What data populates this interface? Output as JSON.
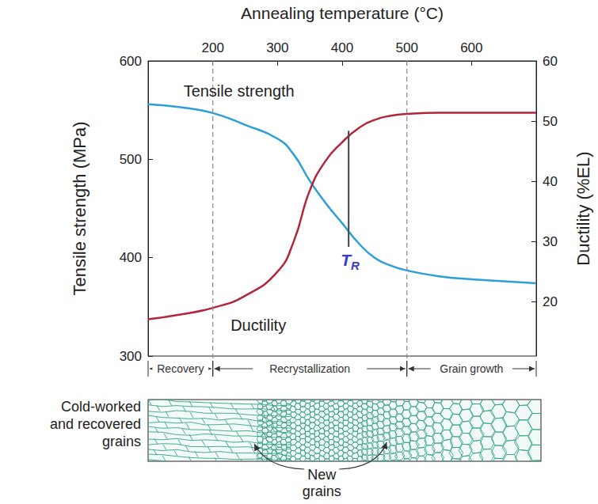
{
  "chart_data": {
    "type": "line",
    "x_label": "Annealing temperature (°C)",
    "y_label": "Tensile strength (MPa)",
    "y2_label": "Ductility (%EL)",
    "x": [
      100,
      150,
      200,
      250,
      300,
      325,
      350,
      375,
      400,
      425,
      450,
      475,
      500,
      550,
      600,
      650,
      700
    ],
    "series": [
      {
        "name": "Tensile strength",
        "color": "#2b9fd8",
        "line_style": "solid",
        "marker": "none",
        "values": [
          556,
          553,
          547,
          535,
          521,
          505,
          478,
          455,
          435,
          415,
          400,
          392,
          387,
          381,
          378,
          376,
          374
        ]
      },
      {
        "name": "Ductility",
        "color": "#b3263a",
        "line_style": "solid",
        "marker": "none",
        "axis": "y2",
        "values": [
          17.1,
          17.9,
          19,
          21,
          25,
          30,
          38.5,
          43.5,
          46.5,
          48.8,
          50.2,
          50.9,
          51.2,
          51.4,
          51.4,
          51.4,
          51.4
        ]
      }
    ],
    "xlim": [
      100,
      700
    ],
    "xticks": [
      200,
      300,
      400,
      500,
      600
    ],
    "ylim": [
      300,
      600
    ],
    "yticks": [
      300,
      400,
      500,
      600
    ],
    "y2lim": [
      11,
      60
    ],
    "y2ticks": [
      20,
      30,
      40,
      50,
      60
    ],
    "grid": false,
    "vertical_lines": [
      200,
      500
    ],
    "annotations": [
      {
        "label": "T",
        "subscript": "R",
        "x": 410,
        "y_from": 411,
        "y_to": 529,
        "color": "#3a3acf"
      }
    ],
    "stages": [
      {
        "label": "Recovery",
        "from": 100,
        "to": 200
      },
      {
        "label": "Recrystallization",
        "from": 200,
        "to": 500
      },
      {
        "label": "Grain growth",
        "from": 500,
        "to": 700
      }
    ],
    "microstructure": {
      "labels": [
        "Cold-worked and recovered grains",
        "New grains"
      ],
      "color": "#3aa38a"
    }
  }
}
